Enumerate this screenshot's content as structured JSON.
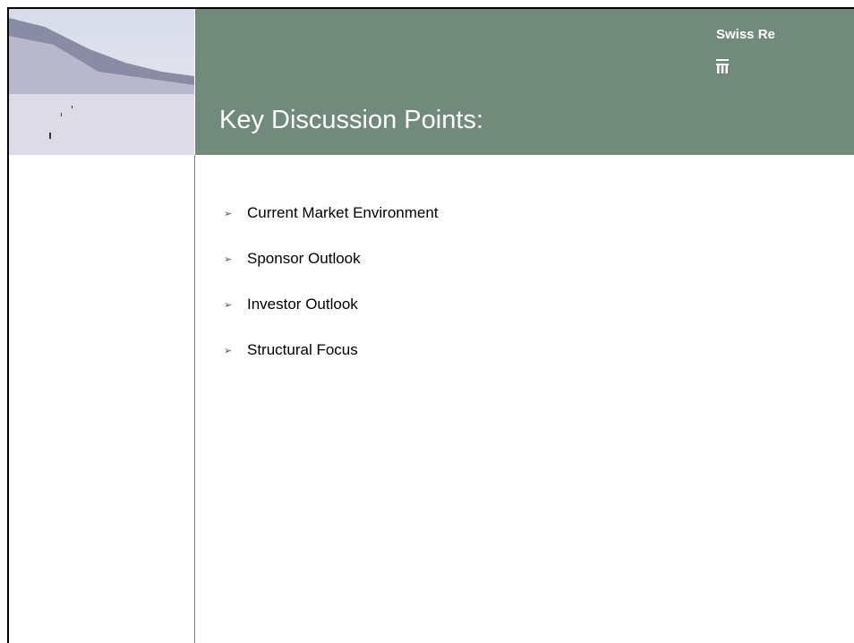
{
  "header": {
    "title": "Key Discussion Points:",
    "brand": "Swiss Re"
  },
  "bullets": [
    "Current Market Environment",
    "Sponsor Outlook",
    "Investor Outlook",
    "Structural Focus"
  ]
}
